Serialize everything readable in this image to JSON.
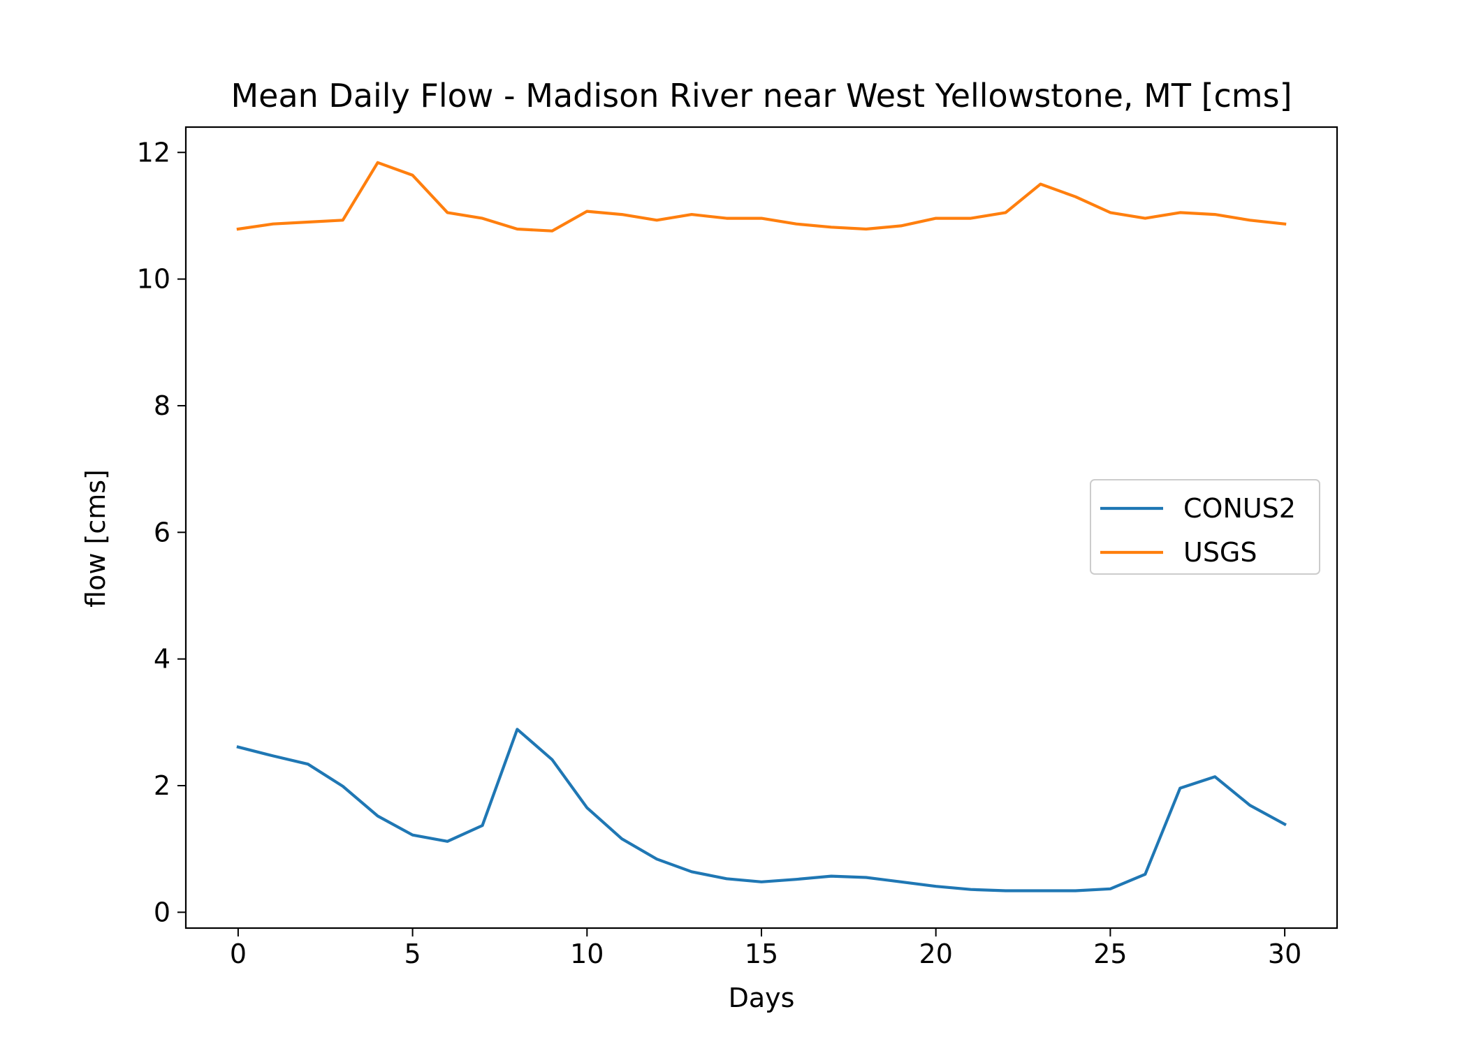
{
  "chart_data": {
    "type": "line",
    "title": "Mean Daily Flow - Madison River near West Yellowstone, MT [cms]",
    "xlabel": "Days",
    "ylabel": "flow [cms]",
    "xlim": [
      -1.5,
      31.5
    ],
    "ylim": [
      -0.25,
      12.4
    ],
    "xticks": [
      0,
      5,
      10,
      15,
      20,
      25,
      30
    ],
    "yticks": [
      0,
      2,
      4,
      6,
      8,
      10,
      12
    ],
    "grid": false,
    "legend_position": "center-right",
    "x": [
      0,
      1,
      2,
      3,
      4,
      5,
      6,
      7,
      8,
      9,
      10,
      11,
      12,
      13,
      14,
      15,
      16,
      17,
      18,
      19,
      20,
      21,
      22,
      23,
      24,
      25,
      26,
      27,
      28,
      29,
      30
    ],
    "series": [
      {
        "name": "CONUS2",
        "color": "#1f77b4",
        "values": [
          2.61,
          2.47,
          2.34,
          1.99,
          1.52,
          1.22,
          1.12,
          1.37,
          2.89,
          2.41,
          1.65,
          1.16,
          0.84,
          0.64,
          0.53,
          0.48,
          0.52,
          0.57,
          0.55,
          0.48,
          0.41,
          0.36,
          0.34,
          0.34,
          0.34,
          0.37,
          0.6,
          1.96,
          2.14,
          1.69,
          1.39
        ]
      },
      {
        "name": "USGS",
        "color": "#ff7f0e",
        "values": [
          10.79,
          10.87,
          10.9,
          10.93,
          11.84,
          11.64,
          11.05,
          10.96,
          10.79,
          10.76,
          11.07,
          11.02,
          10.93,
          11.02,
          10.96,
          10.96,
          10.87,
          10.82,
          10.79,
          10.84,
          10.96,
          10.96,
          11.05,
          11.5,
          11.3,
          11.05,
          10.96,
          11.05,
          11.02,
          10.93,
          10.87
        ]
      }
    ]
  }
}
